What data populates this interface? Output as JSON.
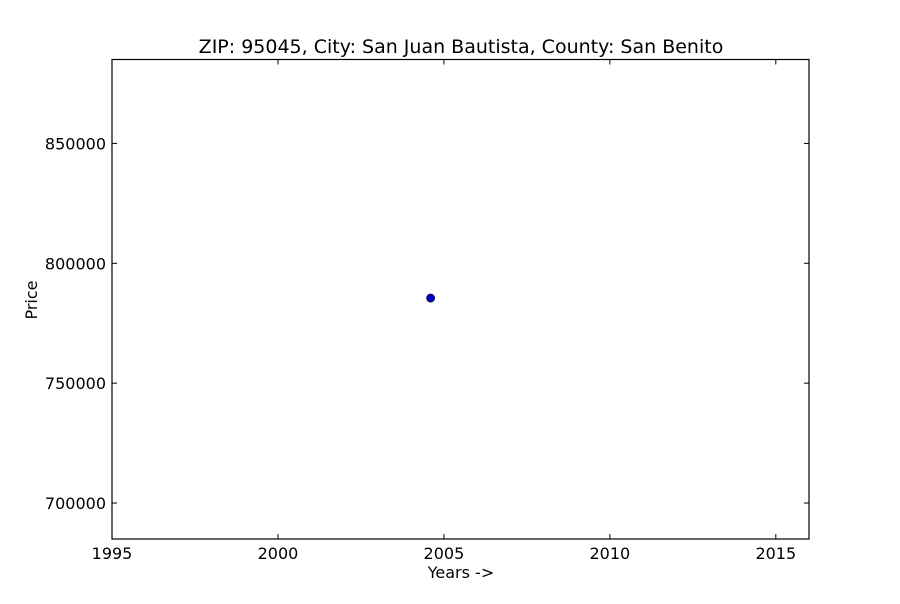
{
  "chart_data": {
    "type": "scatter",
    "title": "ZIP: 95045, City: San Juan Bautista, County: San Benito",
    "xlabel": "Years ->",
    "ylabel": "Price",
    "xlim": [
      1995,
      2016
    ],
    "ylim": [
      685000,
      885000
    ],
    "xticks": [
      1995,
      2000,
      2005,
      2010,
      2015
    ],
    "yticks": [
      700000,
      750000,
      800000,
      850000
    ],
    "grid": false,
    "legend": "none",
    "marker_color": "#0000cc",
    "series": [
      {
        "points": [
          {
            "x": 2004.6,
            "y": 785500
          }
        ]
      }
    ]
  }
}
